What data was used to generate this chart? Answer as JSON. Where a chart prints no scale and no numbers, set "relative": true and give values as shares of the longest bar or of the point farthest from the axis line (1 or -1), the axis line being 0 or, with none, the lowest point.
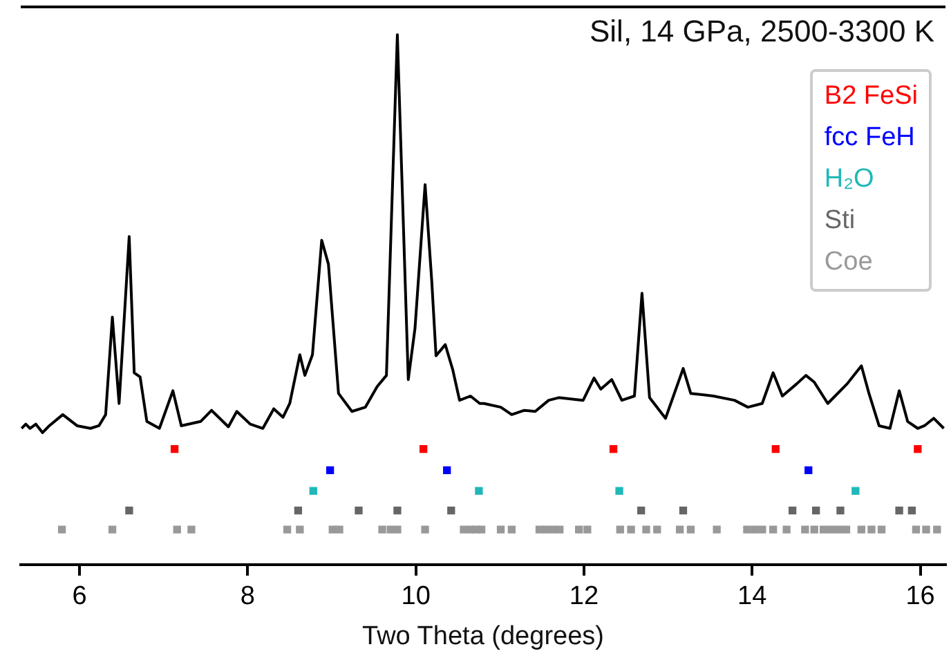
{
  "chart_data": {
    "type": "line",
    "title": "Sil, 14 GPa, 2500-3300 K",
    "xlabel": "Two Theta (degrees)",
    "relative": true,
    "xlim": [
      5.3,
      16.3
    ],
    "xticks": [
      6,
      8,
      10,
      12,
      14,
      16
    ],
    "grid": false,
    "series": [
      {
        "color": "#000000",
        "x": [
          5.31,
          5.36,
          5.41,
          5.48,
          5.56,
          5.64,
          5.8,
          5.97,
          6.13,
          6.23,
          6.31,
          6.39,
          6.47,
          6.59,
          6.65,
          6.72,
          6.8,
          6.95,
          7.11,
          7.21,
          7.44,
          7.57,
          7.77,
          7.87,
          8.03,
          8.18,
          8.31,
          8.42,
          8.5,
          8.62,
          8.68,
          8.77,
          8.88,
          8.96,
          9.08,
          9.24,
          9.4,
          9.54,
          9.65,
          9.78,
          9.91,
          9.99,
          10.11,
          10.19,
          10.24,
          10.35,
          10.44,
          10.52,
          10.65,
          10.76,
          10.81,
          11.01,
          11.14,
          11.29,
          11.42,
          11.58,
          11.7,
          11.99,
          12.12,
          12.2,
          12.33,
          12.45,
          12.6,
          12.69,
          12.78,
          12.97,
          13.18,
          13.27,
          13.54,
          13.79,
          13.95,
          14.12,
          14.25,
          14.36,
          14.53,
          14.64,
          14.74,
          14.9,
          15.13,
          15.3,
          15.39,
          15.51,
          15.64,
          15.75,
          15.85,
          15.97,
          16.05,
          16.16,
          16.28
        ],
        "values": [
          0.257,
          0.265,
          0.257,
          0.265,
          0.249,
          0.262,
          0.283,
          0.262,
          0.257,
          0.262,
          0.283,
          0.467,
          0.304,
          0.619,
          0.362,
          0.354,
          0.27,
          0.257,
          0.328,
          0.262,
          0.27,
          0.291,
          0.26,
          0.289,
          0.265,
          0.257,
          0.294,
          0.278,
          0.304,
          0.396,
          0.357,
          0.396,
          0.612,
          0.567,
          0.323,
          0.289,
          0.297,
          0.336,
          0.357,
          1.0,
          0.349,
          0.446,
          0.717,
          0.533,
          0.394,
          0.415,
          0.367,
          0.31,
          0.318,
          0.304,
          0.304,
          0.297,
          0.283,
          0.291,
          0.289,
          0.31,
          0.315,
          0.31,
          0.352,
          0.331,
          0.349,
          0.31,
          0.318,
          0.512,
          0.315,
          0.276,
          0.37,
          0.323,
          0.318,
          0.31,
          0.297,
          0.304,
          0.362,
          0.318,
          0.341,
          0.357,
          0.344,
          0.304,
          0.341,
          0.375,
          0.323,
          0.262,
          0.257,
          0.328,
          0.27,
          0.257,
          0.262,
          0.276,
          0.257
        ]
      },
      {
        "type": "scatter",
        "name": "B2 FeSi",
        "color": "#ff0000",
        "x": [
          7.13,
          10.09,
          12.35,
          14.28,
          15.97
        ],
        "values": [
          0.218,
          0.218,
          0.218,
          0.218,
          0.218
        ]
      },
      {
        "type": "scatter",
        "name": "fcc FeH",
        "color": "#0000ff",
        "x": [
          8.98,
          10.37,
          14.67
        ],
        "values": [
          0.178,
          0.178,
          0.178
        ]
      },
      {
        "type": "scatter",
        "name": "H₂O",
        "color": "#20b8b8",
        "x": [
          8.78,
          10.75,
          12.42,
          15.23
        ],
        "values": [
          0.139,
          0.139,
          0.139,
          0.139
        ]
      },
      {
        "type": "scatter",
        "name": "Sti",
        "color": "#666666",
        "x": [
          6.59,
          8.6,
          9.32,
          9.78,
          10.42,
          12.68,
          13.18,
          14.48,
          14.76,
          15.05,
          15.75,
          15.9
        ],
        "values": [
          0.102,
          0.102,
          0.102,
          0.102,
          0.102,
          0.102,
          0.102,
          0.102,
          0.102,
          0.102,
          0.102,
          0.102
        ]
      },
      {
        "type": "scatter",
        "name": "Coe",
        "color": "#999999",
        "x": [
          5.79,
          6.39,
          7.16,
          7.33,
          8.47,
          8.62,
          9.01,
          9.09,
          9.6,
          9.7,
          9.78,
          10.11,
          10.57,
          10.65,
          10.72,
          10.78,
          11.01,
          11.14,
          11.47,
          11.55,
          11.63,
          11.71,
          11.94,
          12.04,
          12.43,
          12.56,
          12.74,
          12.87,
          13.14,
          13.27,
          13.58,
          13.94,
          14.03,
          14.12,
          14.25,
          14.41,
          14.63,
          14.74,
          14.85,
          14.94,
          15.03,
          15.12,
          15.3,
          15.42,
          15.54,
          15.95,
          16.07,
          16.2
        ],
        "values": [
          0.066,
          0.066,
          0.066,
          0.066,
          0.066,
          0.066,
          0.066,
          0.066,
          0.066,
          0.066,
          0.066,
          0.066,
          0.066,
          0.066,
          0.066,
          0.066,
          0.066,
          0.066,
          0.066,
          0.066,
          0.066,
          0.066,
          0.066,
          0.066,
          0.066,
          0.066,
          0.066,
          0.066,
          0.066,
          0.066,
          0.066,
          0.066,
          0.066,
          0.066,
          0.066,
          0.066,
          0.066,
          0.066,
          0.066,
          0.066,
          0.066,
          0.066,
          0.066,
          0.066,
          0.066,
          0.066,
          0.066,
          0.066
        ]
      }
    ]
  }
}
